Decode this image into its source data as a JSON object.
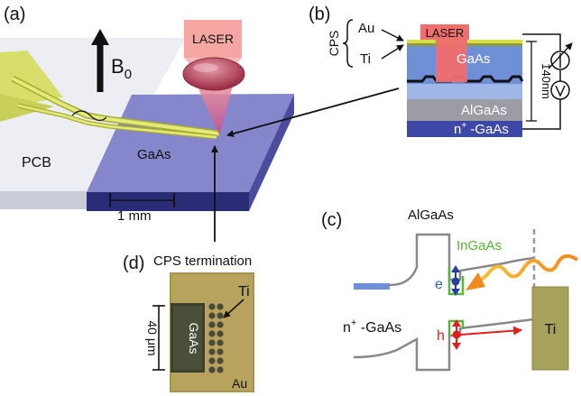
{
  "panels": {
    "a": "(a)",
    "b": "(b)",
    "c": "(c)",
    "d": "(d)"
  },
  "panel_a": {
    "laser": "LASER",
    "field_symbol": "B",
    "field_subscript": "0",
    "pcb": "PCB",
    "gaas": "GaAs",
    "scale": "1 mm",
    "termination": "CPS termination"
  },
  "panel_b": {
    "cps": "CPS",
    "au": "Au",
    "ti": "Ti",
    "laser": "LASER",
    "gaas": "GaAs",
    "algaas": "AlGaAs",
    "n_prefix": "n",
    "n_sup": "+",
    "n_suffix": " -GaAs",
    "thickness": "140nm"
  },
  "panel_c": {
    "algaas": "AlGaAs",
    "ingaas": "InGaAs",
    "electron": "e",
    "hole": "h",
    "n_prefix": "n",
    "n_sup": "+",
    "n_suffix": " -GaAs",
    "ti": "Ti"
  },
  "panel_d": {
    "gaas": "GaAs",
    "ti": "Ti",
    "au": "Au",
    "scale": "40 μm"
  }
}
